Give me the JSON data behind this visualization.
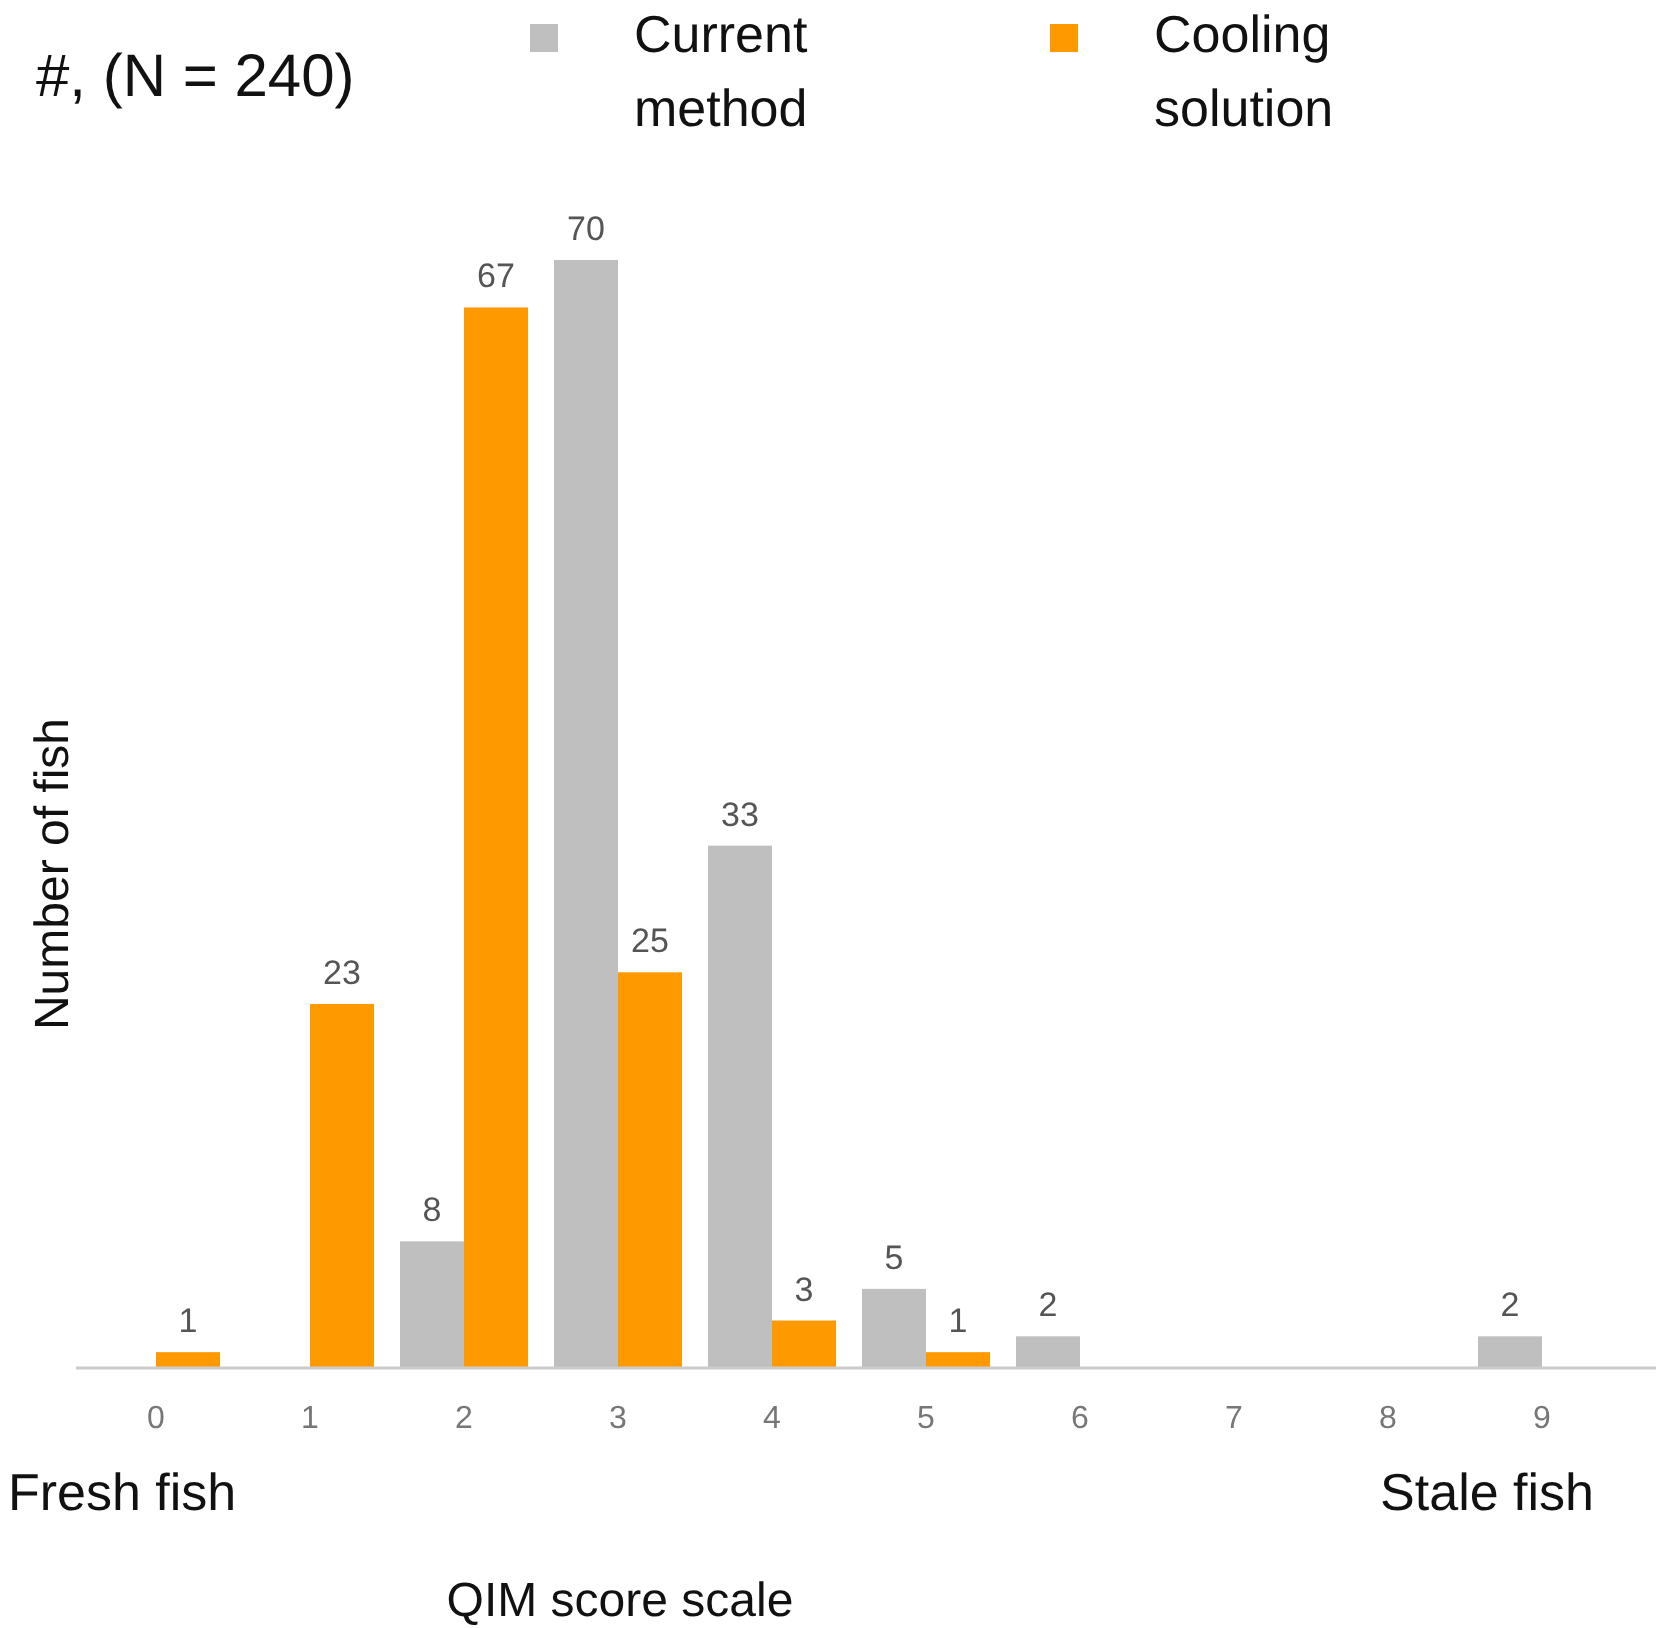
{
  "chart_data": {
    "type": "bar",
    "title": "#, (N = 240)",
    "xlabel": "QIM score scale",
    "ylabel": "Number of fish",
    "categories": [
      "0",
      "1",
      "2",
      "3",
      "4",
      "5",
      "6",
      "7",
      "8",
      "9"
    ],
    "series": [
      {
        "name": "Current method",
        "color": "#bfbfbf",
        "values": [
          null,
          null,
          8,
          70,
          33,
          5,
          2,
          null,
          null,
          2
        ]
      },
      {
        "name": "Cooling solution",
        "color": "#ff9900",
        "values": [
          1,
          23,
          67,
          25,
          3,
          1,
          null,
          null,
          null,
          null
        ]
      }
    ],
    "data_labels": true,
    "legend": "top",
    "grid": false,
    "annotations": [
      "Fresh fish",
      "Stale fish"
    ]
  }
}
